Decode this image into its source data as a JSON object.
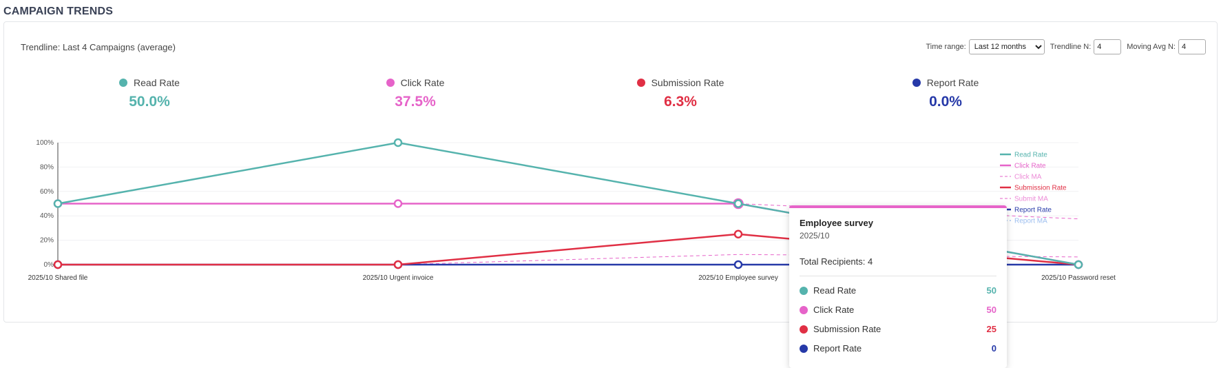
{
  "page": {
    "title": "CAMPAIGN TRENDS"
  },
  "header": {
    "trendline_label": "Trendline: Last 4 Campaigns (average)"
  },
  "controls": {
    "time_range_label": "Time range:",
    "time_range_value": "Last 12 months",
    "trendline_n_label": "Trendline N:",
    "trendline_n_value": "4",
    "moving_avg_label": "Moving Avg N:",
    "moving_avg_value": "4"
  },
  "summary": [
    {
      "label": "Read Rate",
      "value": "50.0%",
      "color": "#55b3ad"
    },
    {
      "label": "Click Rate",
      "value": "37.5%",
      "color": "#e663c9"
    },
    {
      "label": "Submission Rate",
      "value": "6.3%",
      "color": "#e02f44"
    },
    {
      "label": "Report Rate",
      "value": "0.0%",
      "color": "#2639a8"
    }
  ],
  "chart_data": {
    "type": "line",
    "categories": [
      "2025/10 Shared file",
      "2025/10 Urgent invoice",
      "2025/10 Employee survey",
      "2025/10 Password reset"
    ],
    "ylim": [
      0,
      100
    ],
    "y_ticks": [
      "0%",
      "20%",
      "40%",
      "60%",
      "80%",
      "100%"
    ],
    "grid": true,
    "legend_position": "right",
    "series": [
      {
        "name": "Read Rate",
        "values": [
          50,
          100,
          50,
          0
        ],
        "color": "#55b3ad",
        "style": "solid"
      },
      {
        "name": "Click Rate",
        "values": [
          50,
          50,
          50,
          0
        ],
        "color": "#e663c9",
        "style": "solid"
      },
      {
        "name": "Click MA",
        "values": [
          50,
          50,
          50,
          37.5
        ],
        "color": "#e663c9",
        "style": "dashed"
      },
      {
        "name": "Submission Rate",
        "values": [
          0,
          0,
          25,
          0
        ],
        "color": "#e02f44",
        "style": "solid"
      },
      {
        "name": "Submit MA",
        "values": [
          0,
          0,
          8.3,
          6.3
        ],
        "color": "#e663c9",
        "style": "dashed"
      },
      {
        "name": "Report Rate",
        "values": [
          0,
          0,
          0,
          0
        ],
        "color": "#2639a8",
        "style": "solid"
      },
      {
        "name": "Report MA",
        "values": [
          0,
          0,
          0,
          0
        ],
        "color": "#7aa8ea",
        "style": "dashed"
      }
    ]
  },
  "tooltip": {
    "title": "Employee survey",
    "date": "2025/10",
    "total": "Total Recipients: 4",
    "rows": [
      {
        "label": "Read Rate",
        "value": "50",
        "color": "#55b3ad"
      },
      {
        "label": "Click Rate",
        "value": "50",
        "color": "#e663c9"
      },
      {
        "label": "Submission Rate",
        "value": "25",
        "color": "#e02f44"
      },
      {
        "label": "Report Rate",
        "value": "0",
        "color": "#2639a8"
      }
    ]
  }
}
